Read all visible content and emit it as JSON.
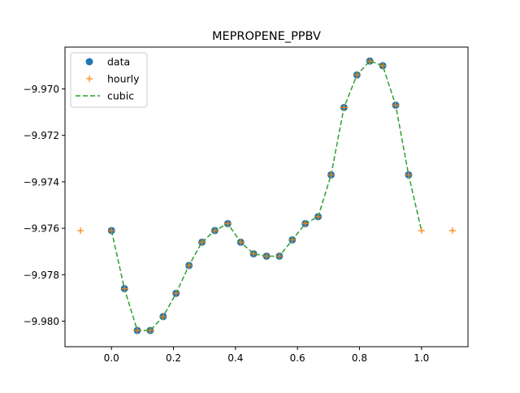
{
  "chart_data": {
    "type": "line",
    "title": "MEPROPENE_PPBV",
    "xlabel": "",
    "ylabel": "",
    "xlim": [
      -0.15,
      1.15
    ],
    "ylim": [
      -9.9811,
      -9.9682
    ],
    "x_ticks": [
      0.0,
      0.2,
      0.4,
      0.6,
      0.8,
      1.0
    ],
    "x_tick_labels": [
      "0.0",
      "0.2",
      "0.4",
      "0.6",
      "0.8",
      "1.0"
    ],
    "y_ticks": [
      -9.98,
      -9.978,
      -9.976,
      -9.974,
      -9.972,
      -9.97
    ],
    "y_tick_labels": [
      "−9.980",
      "−9.978",
      "−9.976",
      "−9.974",
      "−9.972",
      "−9.970"
    ],
    "grid": false,
    "legend": {
      "position": "top-left",
      "entries": [
        "data",
        "hourly",
        "cubic"
      ]
    },
    "series": [
      {
        "name": "data",
        "style": "markers-circle",
        "color": "#1f77b4",
        "x": [
          0.0,
          0.04167,
          0.08333,
          0.125,
          0.16667,
          0.20833,
          0.25,
          0.29167,
          0.33333,
          0.375,
          0.41667,
          0.45833,
          0.5,
          0.54167,
          0.58333,
          0.625,
          0.66667,
          0.70833,
          0.75,
          0.79167,
          0.83333,
          0.875,
          0.91667,
          0.95833
        ],
        "y": [
          -9.9761,
          -9.9786,
          -9.9804,
          -9.9804,
          -9.9798,
          -9.9788,
          -9.9776,
          -9.9766,
          -9.9761,
          -9.9758,
          -9.9766,
          -9.9771,
          -9.9772,
          -9.9772,
          -9.9765,
          -9.9758,
          -9.9755,
          -9.9737,
          -9.9708,
          -9.9694,
          -9.9688,
          -9.969,
          -9.9707,
          -9.9737
        ]
      },
      {
        "name": "hourly",
        "style": "markers-plus",
        "color": "#ff7f0e",
        "x": [
          -0.1,
          0.0,
          0.04167,
          0.08333,
          0.125,
          0.16667,
          0.20833,
          0.25,
          0.29167,
          0.33333,
          0.375,
          0.41667,
          0.45833,
          0.5,
          0.54167,
          0.58333,
          0.625,
          0.66667,
          0.70833,
          0.75,
          0.79167,
          0.83333,
          0.875,
          0.91667,
          0.95833,
          1.0,
          1.1
        ],
        "y": [
          -9.9761,
          -9.9761,
          -9.9786,
          -9.9804,
          -9.9804,
          -9.9798,
          -9.9788,
          -9.9776,
          -9.9766,
          -9.9761,
          -9.9758,
          -9.9766,
          -9.9771,
          -9.9772,
          -9.9772,
          -9.9765,
          -9.9758,
          -9.9755,
          -9.9737,
          -9.9708,
          -9.9694,
          -9.9688,
          -9.969,
          -9.9707,
          -9.9737,
          -9.9761,
          -9.9761
        ]
      },
      {
        "name": "cubic",
        "style": "dashed-line",
        "color": "#2ca02c",
        "x": [
          0.0,
          0.04167,
          0.08333,
          0.125,
          0.16667,
          0.20833,
          0.25,
          0.29167,
          0.33333,
          0.375,
          0.41667,
          0.45833,
          0.5,
          0.54167,
          0.58333,
          0.625,
          0.66667,
          0.70833,
          0.75,
          0.79167,
          0.83333,
          0.875,
          0.91667,
          0.95833,
          1.0
        ],
        "y": [
          -9.9761,
          -9.9786,
          -9.9804,
          -9.9804,
          -9.9798,
          -9.9788,
          -9.9776,
          -9.9766,
          -9.9761,
          -9.9758,
          -9.9766,
          -9.9771,
          -9.9772,
          -9.9772,
          -9.9765,
          -9.9758,
          -9.9755,
          -9.9737,
          -9.9708,
          -9.9694,
          -9.9688,
          -9.969,
          -9.9707,
          -9.9737,
          -9.9761
        ]
      }
    ]
  }
}
